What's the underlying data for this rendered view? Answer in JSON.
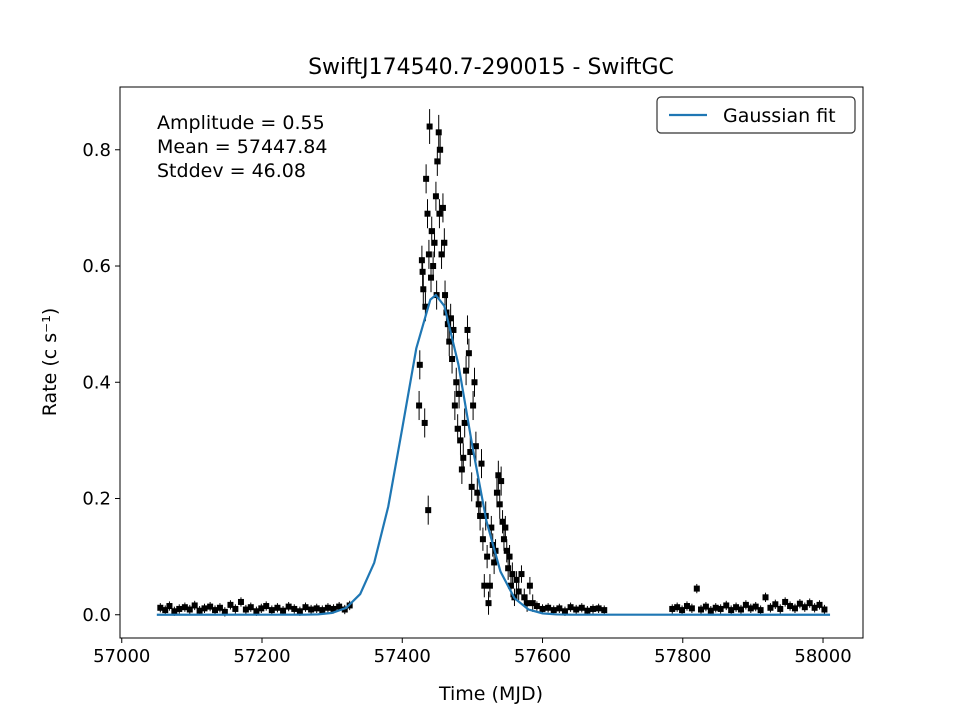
{
  "chart_data": {
    "type": "scatter",
    "title": "SwiftJ174540.7-290015 - SwiftGC",
    "xlabel": "Time (MJD)",
    "ylabel": "Rate (c s⁻¹)",
    "annotation": [
      "Amplitude = 0.55",
      "Mean = 57447.84",
      "Stddev = 46.08"
    ],
    "legend": "upper right",
    "xlim": [
      56997.5,
      58057
    ],
    "ylim": [
      -0.04,
      0.908
    ],
    "xticks": [
      57000,
      57200,
      57400,
      57600,
      57800,
      58000
    ],
    "yticks": [
      {
        "value": 0,
        "label": "0.0"
      },
      0.2,
      0.4,
      0.6,
      0.8
    ],
    "points": {
      "color": "#000000",
      "x": [
        57055,
        57062,
        57068,
        57075,
        57082,
        57090,
        57097,
        57104,
        57111,
        57118,
        57126,
        57133,
        57140,
        57147,
        57155,
        57162,
        57170,
        57177,
        57184,
        57192,
        57199,
        57206,
        57214,
        57222,
        57230,
        57238,
        57246,
        57254,
        57262,
        57270,
        57278,
        57286,
        57294,
        57302,
        57310,
        57318,
        57325,
        57424,
        57425,
        57428,
        57429,
        57430,
        57432,
        57433,
        57434,
        57436,
        57437,
        57438,
        57439,
        57441,
        57442,
        57444,
        57446,
        57448,
        57449,
        57450,
        57452,
        57453,
        57454,
        57456,
        57458,
        57460,
        57461,
        57463,
        57465,
        57467,
        57469,
        57471,
        57473,
        57475,
        57477,
        57479,
        57481,
        57483,
        57485,
        57487,
        57489,
        57491,
        57493,
        57495,
        57497,
        57499,
        57501,
        57503,
        57505,
        57507,
        57509,
        57511,
        57513,
        57515,
        57517,
        57519,
        57521,
        57523,
        57525,
        57527,
        57529,
        57531,
        57533,
        57535,
        57537,
        57539,
        57541,
        57543,
        57545,
        57547,
        57549,
        57551,
        57553,
        57555,
        57557,
        57560,
        57563,
        57566,
        57570,
        57574,
        57578,
        57582,
        57586,
        57592,
        57600,
        57608,
        57616,
        57624,
        57632,
        57640,
        57648,
        57656,
        57664,
        57672,
        57680,
        57688,
        57785,
        57792,
        57799,
        57806,
        57813,
        57820,
        57826,
        57833,
        57840,
        57847,
        57854,
        57862,
        57869,
        57876,
        57883,
        57890,
        57897,
        57904,
        57911,
        57918,
        57925,
        57932,
        57939,
        57946,
        57953,
        57960,
        57967,
        57974,
        57981,
        57988,
        57995,
        58002
      ],
      "values": [
        0.012,
        0.008,
        0.015,
        0.006,
        0.01,
        0.013,
        0.009,
        0.016,
        0.007,
        0.011,
        0.014,
        0.008,
        0.012,
        0.005,
        0.017,
        0.01,
        0.022,
        0.009,
        0.013,
        0.006,
        0.011,
        0.015,
        0.008,
        0.012,
        0.007,
        0.014,
        0.01,
        0.006,
        0.013,
        0.009,
        0.011,
        0.008,
        0.012,
        0.01,
        0.014,
        0.009,
        0.016,
        0.36,
        0.43,
        0.61,
        0.59,
        0.56,
        0.33,
        0.53,
        0.75,
        0.69,
        0.18,
        0.62,
        0.84,
        0.58,
        0.66,
        0.6,
        0.64,
        0.72,
        0.55,
        0.78,
        0.83,
        0.69,
        0.8,
        0.62,
        0.7,
        0.64,
        0.55,
        0.52,
        0.5,
        0.47,
        0.51,
        0.44,
        0.49,
        0.36,
        0.4,
        0.32,
        0.38,
        0.3,
        0.25,
        0.27,
        0.33,
        0.42,
        0.49,
        0.45,
        0.28,
        0.22,
        0.36,
        0.4,
        0.29,
        0.21,
        0.19,
        0.17,
        0.26,
        0.13,
        0.05,
        0.17,
        0.1,
        0.02,
        0.05,
        0.15,
        0.12,
        0.09,
        0.11,
        0.21,
        0.24,
        0.19,
        0.23,
        0.16,
        0.13,
        0.15,
        0.11,
        0.08,
        0.1,
        0.05,
        0.07,
        0.03,
        0.06,
        0.04,
        0.07,
        0.03,
        0.02,
        0.05,
        0.02,
        0.015,
        0.01,
        0.012,
        0.008,
        0.011,
        0.006,
        0.013,
        0.009,
        0.012,
        0.007,
        0.01,
        0.011,
        0.008,
        0.01,
        0.013,
        0.008,
        0.015,
        0.011,
        0.045,
        0.009,
        0.014,
        0.007,
        0.012,
        0.01,
        0.016,
        0.008,
        0.013,
        0.009,
        0.017,
        0.011,
        0.014,
        0.008,
        0.03,
        0.012,
        0.018,
        0.01,
        0.022,
        0.015,
        0.011,
        0.019,
        0.013,
        0.02,
        0.012,
        0.017,
        0.009
      ],
      "errors": [
        0.008,
        0.008,
        0.008,
        0.008,
        0.008,
        0.008,
        0.008,
        0.008,
        0.008,
        0.008,
        0.008,
        0.008,
        0.008,
        0.008,
        0.008,
        0.008,
        0.008,
        0.008,
        0.008,
        0.008,
        0.008,
        0.008,
        0.008,
        0.008,
        0.008,
        0.008,
        0.008,
        0.008,
        0.008,
        0.008,
        0.008,
        0.008,
        0.008,
        0.008,
        0.008,
        0.008,
        0.008,
        0.025,
        0.025,
        0.025,
        0.025,
        0.025,
        0.025,
        0.025,
        0.025,
        0.025,
        0.025,
        0.025,
        0.03,
        0.025,
        0.025,
        0.025,
        0.025,
        0.025,
        0.025,
        0.025,
        0.03,
        0.025,
        0.025,
        0.025,
        0.025,
        0.025,
        0.025,
        0.025,
        0.025,
        0.025,
        0.025,
        0.025,
        0.025,
        0.025,
        0.025,
        0.025,
        0.025,
        0.025,
        0.025,
        0.025,
        0.025,
        0.025,
        0.025,
        0.025,
        0.025,
        0.025,
        0.025,
        0.025,
        0.025,
        0.025,
        0.025,
        0.025,
        0.025,
        0.02,
        0.02,
        0.025,
        0.02,
        0.02,
        0.02,
        0.02,
        0.02,
        0.02,
        0.02,
        0.025,
        0.025,
        0.025,
        0.025,
        0.02,
        0.02,
        0.02,
        0.02,
        0.02,
        0.02,
        0.02,
        0.02,
        0.015,
        0.015,
        0.015,
        0.015,
        0.015,
        0.015,
        0.015,
        0.015,
        0.008,
        0.008,
        0.008,
        0.008,
        0.008,
        0.008,
        0.008,
        0.008,
        0.008,
        0.008,
        0.008,
        0.008,
        0.008,
        0.008,
        0.008,
        0.008,
        0.008,
        0.008,
        0.008,
        0.008,
        0.008,
        0.008,
        0.008,
        0.008,
        0.008,
        0.008,
        0.008,
        0.008,
        0.008,
        0.008,
        0.008,
        0.008,
        0.008,
        0.008,
        0.008,
        0.008,
        0.008,
        0.008,
        0.008,
        0.008,
        0.008,
        0.008,
        0.008,
        0.008,
        0.008
      ]
    },
    "fit": {
      "name": "Gaussian fit",
      "color": "#1f77b4",
      "x": [
        57050,
        57260,
        57280,
        57300,
        57320,
        57340,
        57360,
        57380,
        57400,
        57420,
        57440,
        57447.84,
        57460,
        57480,
        57500,
        57520,
        57540,
        57560,
        57580,
        57600,
        57620,
        57640,
        58010
      ],
      "values": [
        0,
        0.0001,
        0.0007,
        0.0032,
        0.0117,
        0.0356,
        0.0894,
        0.1861,
        0.3208,
        0.4583,
        0.5421,
        0.55,
        0.5312,
        0.4311,
        0.2898,
        0.1614,
        0.0744,
        0.0285,
        0.009,
        0.0024,
        0.0005,
        0.0001,
        0
      ]
    }
  }
}
